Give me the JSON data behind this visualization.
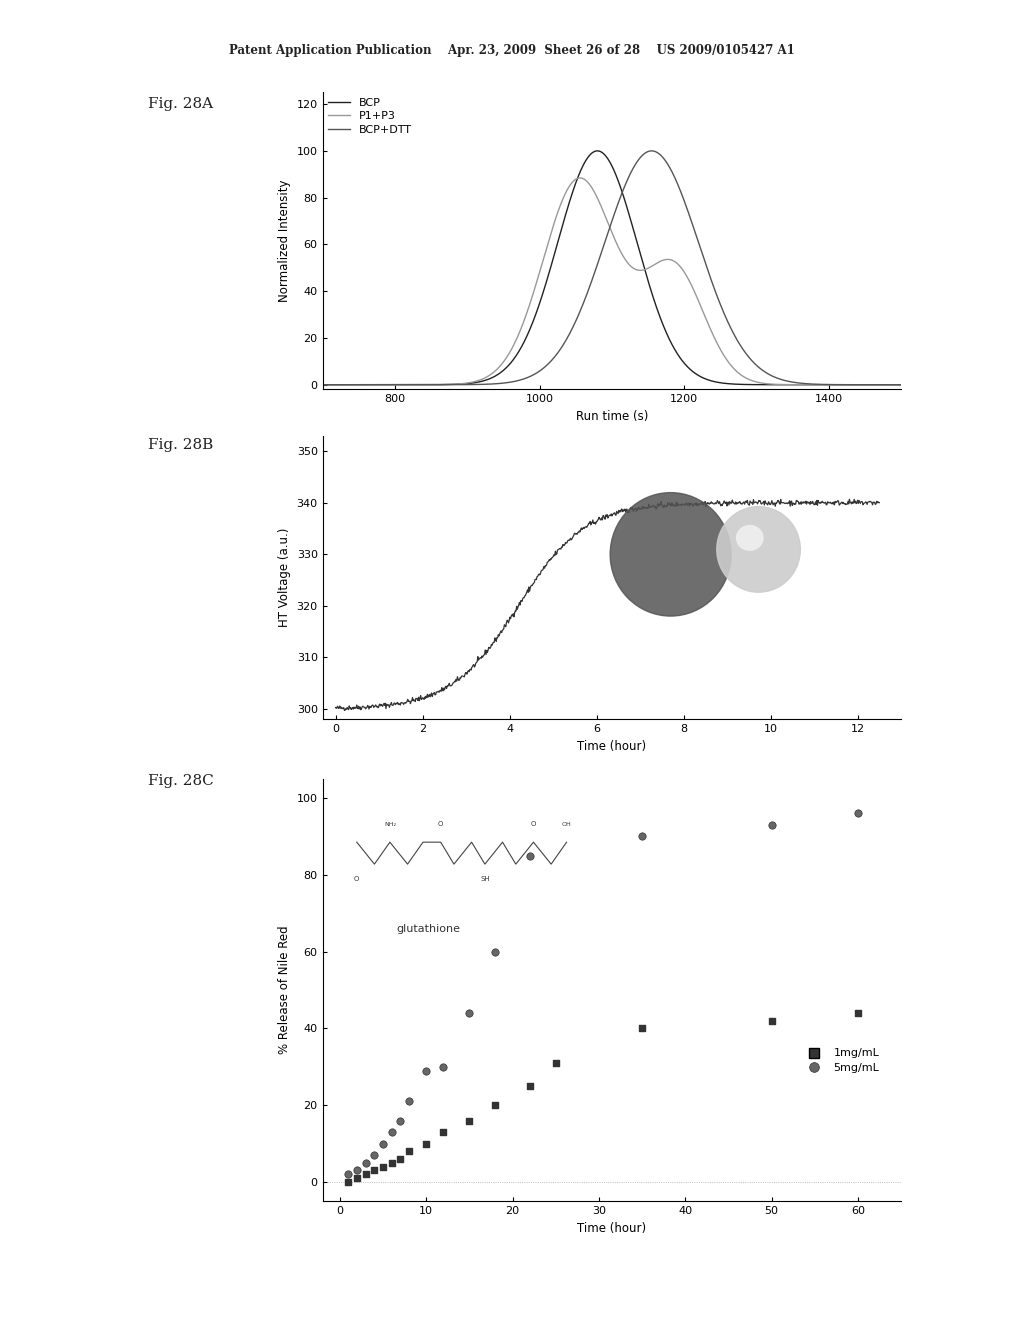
{
  "header_text": "Patent Application Publication    Apr. 23, 2009  Sheet 26 of 28    US 2009/0105427 A1",
  "fig_a_label": "Fig. 28A",
  "fig_b_label": "Fig. 28B",
  "fig_c_label": "Fig. 28C",
  "panelA": {
    "xlabel": "Run time (s)",
    "ylabel": "Normalized Intensity",
    "xlim": [
      700,
      1500
    ],
    "ylim": [
      -2,
      125
    ],
    "xticks": [
      800,
      1000,
      1200,
      1400
    ],
    "yticks": [
      0,
      20,
      40,
      60,
      80,
      100,
      120
    ],
    "legend": [
      "BCP",
      "P1+P3",
      "BCP+DTT"
    ],
    "bcp_color": "#222222",
    "p1p3_color": "#999999",
    "bcpdtt_color": "#555555"
  },
  "panelB": {
    "xlabel": "Time (hour)",
    "ylabel": "HT Voltage (a.u.)",
    "xlim": [
      -0.3,
      13
    ],
    "ylim": [
      298,
      353
    ],
    "xticks": [
      0,
      2,
      4,
      6,
      8,
      10,
      12
    ],
    "yticks": [
      300,
      310,
      320,
      330,
      340,
      350
    ]
  },
  "panelC": {
    "xlabel": "Time (hour)",
    "ylabel": "% Release of Nile Red",
    "xlim": [
      -2,
      65
    ],
    "ylim": [
      -5,
      105
    ],
    "xticks": [
      0,
      10,
      20,
      30,
      40,
      50,
      60
    ],
    "yticks": [
      0,
      20,
      40,
      60,
      80,
      100
    ],
    "annotation": "glutathione",
    "legend_1mg": "1mg/mL",
    "legend_5mg": "5mg/mL",
    "data_1mg_x": [
      1,
      2,
      3,
      4,
      5,
      6,
      7,
      8,
      10,
      12,
      15,
      18,
      22,
      25,
      35,
      50,
      60
    ],
    "data_1mg_y": [
      0,
      1,
      2,
      3,
      4,
      5,
      6,
      8,
      10,
      13,
      16,
      20,
      25,
      31,
      40,
      42,
      44
    ],
    "data_5mg_x": [
      1,
      2,
      3,
      4,
      5,
      6,
      7,
      8,
      10,
      12,
      15,
      18,
      22,
      35,
      50,
      60
    ],
    "data_5mg_y": [
      2,
      3,
      5,
      7,
      10,
      13,
      16,
      21,
      29,
      30,
      44,
      60,
      85,
      90,
      93,
      96
    ]
  },
  "bg_color": "#ffffff",
  "text_color": "#222222"
}
